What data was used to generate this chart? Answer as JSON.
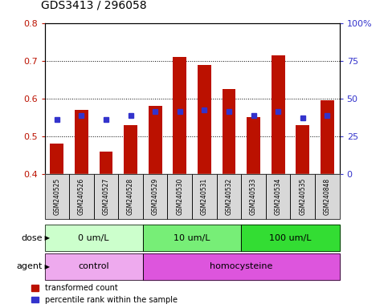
{
  "title": "GDS3413 / 296058",
  "samples": [
    "GSM240525",
    "GSM240526",
    "GSM240527",
    "GSM240528",
    "GSM240529",
    "GSM240530",
    "GSM240531",
    "GSM240532",
    "GSM240533",
    "GSM240534",
    "GSM240535",
    "GSM240848"
  ],
  "red_values": [
    0.48,
    0.57,
    0.46,
    0.53,
    0.58,
    0.71,
    0.69,
    0.625,
    0.55,
    0.715,
    0.53,
    0.595
  ],
  "blue_values": [
    0.545,
    0.555,
    0.545,
    0.555,
    0.565,
    0.565,
    0.57,
    0.565,
    0.555,
    0.565,
    0.548,
    0.555
  ],
  "ylim": [
    0.4,
    0.8
  ],
  "y2lim": [
    0,
    100
  ],
  "yticks": [
    0.4,
    0.5,
    0.6,
    0.7,
    0.8
  ],
  "y2ticks": [
    0,
    25,
    50,
    75,
    100
  ],
  "y2ticklabels": [
    "0",
    "25",
    "50",
    "75",
    "100%"
  ],
  "red_color": "#bb1100",
  "blue_color": "#3333cc",
  "bar_bottom": 0.4,
  "dose_groups": [
    {
      "label": "0 um/L",
      "start": 0,
      "end": 4,
      "color": "#ccffcc"
    },
    {
      "label": "10 um/L",
      "start": 4,
      "end": 8,
      "color": "#77ee77"
    },
    {
      "label": "100 um/L",
      "start": 8,
      "end": 12,
      "color": "#33dd33"
    }
  ],
  "agent_groups": [
    {
      "label": "control",
      "start": 0,
      "end": 4,
      "color": "#eeaaee"
    },
    {
      "label": "homocysteine",
      "start": 4,
      "end": 12,
      "color": "#dd55dd"
    }
  ],
  "legend_red": "transformed count",
  "legend_blue": "percentile rank within the sample",
  "bar_width": 0.55,
  "title_fontsize": 10
}
